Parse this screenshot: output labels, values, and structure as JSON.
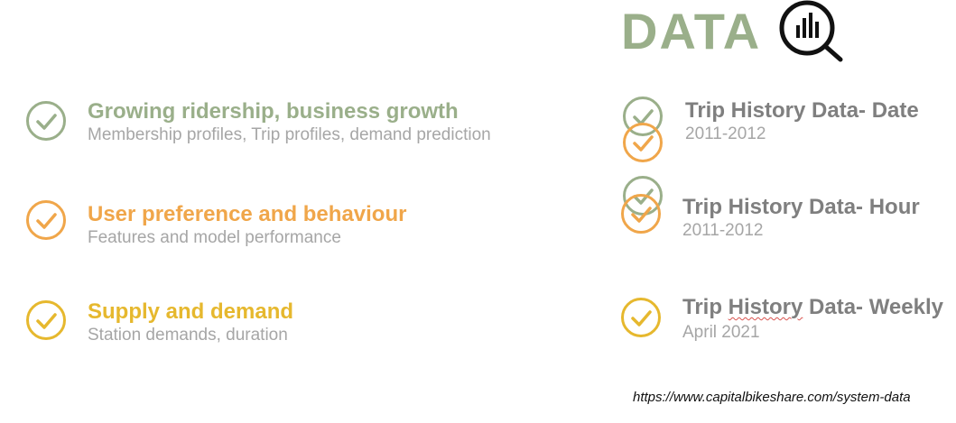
{
  "colors": {
    "green": "#9aaf8a",
    "orange": "#f0a64a",
    "yellow": "#e6b82e",
    "grey": "#7f7f7f",
    "light_grey": "#a6a6a6"
  },
  "header": {
    "title": "DATA",
    "icon": "magnifier-chart-icon"
  },
  "goals": [
    {
      "title": "Growing ridership, business growth",
      "subtitle": "Membership profiles, Trip profiles, demand prediction"
    },
    {
      "title": "User preference and behaviour",
      "subtitle": "Features and model performance"
    },
    {
      "title": "Supply and demand",
      "subtitle": "Station demands, duration"
    }
  ],
  "datasets": [
    {
      "title": "Trip History Data- Date",
      "subtitle": "2011-2012"
    },
    {
      "title": "Trip History Data- Hour",
      "subtitle": "2011-2012"
    },
    {
      "title_pre": "Trip ",
      "title_word": "History",
      "title_post": " Data- Weekly",
      "subtitle": "April 2021"
    }
  ],
  "source_url": "https://www.capitalbikeshare.com/system-data"
}
